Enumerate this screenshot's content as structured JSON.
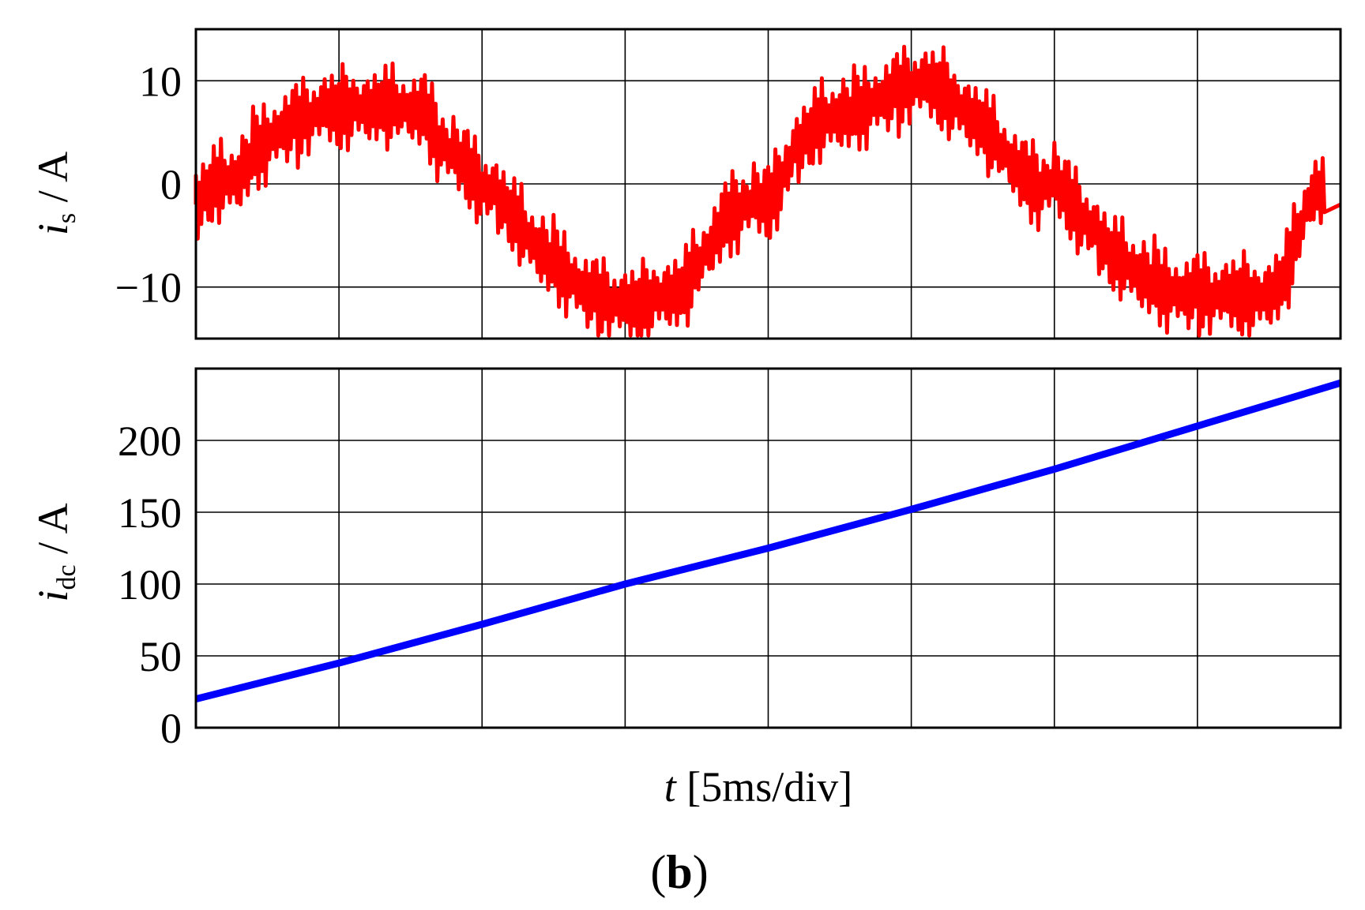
{
  "chart_data": [
    {
      "type": "line",
      "ylabel_var": "i",
      "ylabel_sub": "s",
      "ylabel_unit": " / A",
      "ylim": [
        -15,
        15
      ],
      "yticks": [
        {
          "value": 10,
          "label": "10"
        },
        {
          "value": 0,
          "label": "0"
        },
        {
          "value": -10,
          "label": "−10"
        }
      ],
      "xlim": [
        0,
        40
      ],
      "x_divisions": 8,
      "grid": true,
      "series": [
        {
          "color": "#ff0000",
          "x": [
            0,
            0.5,
            1,
            1.5,
            2,
            2.5,
            3,
            3.5,
            4,
            4.5,
            5,
            5.5,
            6,
            6.5,
            7,
            7.5,
            8,
            8.5,
            9,
            9.5,
            10,
            10.5,
            11,
            11.5,
            12,
            12.5,
            13,
            13.5,
            14,
            14.5,
            15,
            15.5,
            16,
            16.5,
            17,
            17.5,
            18,
            18.5,
            19,
            19.5,
            20,
            20.5,
            21,
            21.5,
            22,
            22.5,
            23,
            23.5,
            24,
            24.5,
            25,
            25.5,
            26,
            26.5,
            27,
            27.5,
            28,
            28.5,
            29,
            29.5,
            30,
            30.5,
            31,
            31.5,
            32,
            32.5,
            33,
            33.5,
            34,
            34.5,
            35,
            35.5,
            36,
            36.5,
            37,
            37.5,
            38,
            38.5,
            39,
            39.5,
            40
          ],
          "y": [
            -2,
            -0.5,
            0,
            0.5,
            3,
            4.5,
            5.5,
            6,
            6.5,
            7,
            7,
            7.5,
            7.5,
            8,
            7.5,
            7,
            6.5,
            4,
            3,
            2,
            0,
            -1,
            -3,
            -5,
            -6.5,
            -7.5,
            -8.5,
            -10,
            -11,
            -11.5,
            -12,
            -12,
            -11,
            -10.5,
            -10,
            -8,
            -6,
            -4,
            -2.5,
            -1.5,
            -1.5,
            1,
            3.5,
            5,
            6,
            6.5,
            7,
            8,
            8.5,
            9,
            9.5,
            9.5,
            9,
            8,
            7,
            6,
            4,
            2,
            0,
            -0.5,
            0.5,
            -1,
            -3,
            -5,
            -7,
            -8,
            -9,
            -9.5,
            -10,
            -10.5,
            -10.5,
            -11,
            -11,
            -11,
            -11,
            -10.5,
            -9,
            -5,
            -1,
            -1,
            -2
          ]
        }
      ]
    },
    {
      "type": "line",
      "ylabel_var": "i",
      "ylabel_sub": "dc",
      "ylabel_unit": " / A",
      "ylim": [
        0,
        250
      ],
      "yticks": [
        {
          "value": 200,
          "label": "200"
        },
        {
          "value": 150,
          "label": "150"
        },
        {
          "value": 100,
          "label": "100"
        },
        {
          "value": 50,
          "label": "50"
        },
        {
          "value": 0,
          "label": "0"
        }
      ],
      "xlim": [
        0,
        40
      ],
      "x_divisions": 8,
      "grid": true,
      "xlabel_var": "t",
      "xlabel_unit": " [5ms/div]",
      "series": [
        {
          "color": "#0000ff",
          "x": [
            0,
            5,
            10,
            15,
            20,
            25,
            30,
            35,
            40
          ],
          "y": [
            20,
            45,
            72,
            100,
            125,
            152,
            180,
            210,
            240
          ]
        }
      ]
    }
  ],
  "caption": {
    "open": "(",
    "letter": "b",
    "close": ")"
  }
}
